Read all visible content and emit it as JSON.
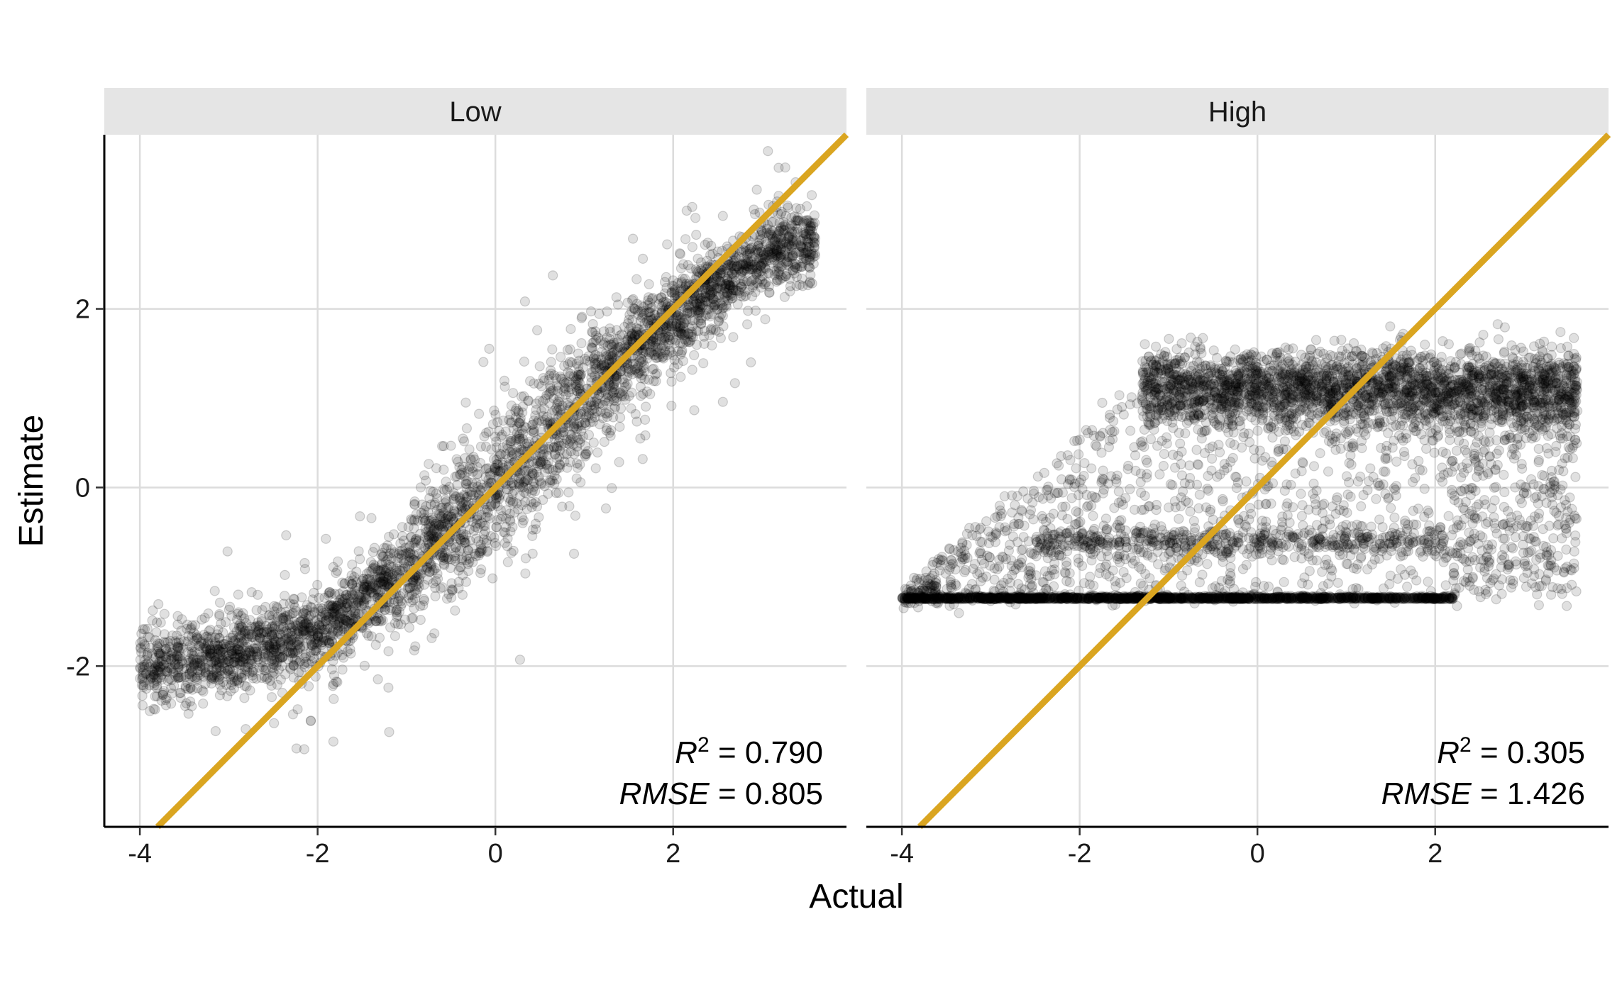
{
  "chart_data": {
    "type": "scatter",
    "xlabel": "Actual",
    "ylabel": "Estimate",
    "xlim": [
      -4.4,
      3.95
    ],
    "ylim": [
      -3.8,
      3.95
    ],
    "x_ticks": [
      -4,
      -2,
      0,
      2
    ],
    "y_ticks": [
      -2,
      0,
      2
    ],
    "x_tick_labels": [
      "-4",
      "-2",
      "0",
      "2"
    ],
    "y_tick_labels": [
      "-2",
      "0",
      "2"
    ],
    "grid": true,
    "legend": "none",
    "point_color": "#000000",
    "point_alpha": 0.12,
    "reference_line": {
      "slope": 1,
      "intercept": 0,
      "color": "#DAA520"
    },
    "panels": [
      {
        "name": "Low",
        "annotation": {
          "r2_label": "R",
          "r2_sup": "2",
          "r2_value": " = 0.790",
          "rmse_label": "RMSE",
          "rmse_value": " = 0.805"
        },
        "points_described": "dense cloud along the identity line, flattening near -2 for Actual < -2 and near 2.8 for Actual > 3",
        "trend": [
          {
            "x": -4.0,
            "y": -2.0
          },
          {
            "x": -3.0,
            "y": -1.9
          },
          {
            "x": -2.0,
            "y": -1.6
          },
          {
            "x": -1.0,
            "y": -0.9
          },
          {
            "x": 0.0,
            "y": 0.0
          },
          {
            "x": 1.0,
            "y": 1.0
          },
          {
            "x": 2.0,
            "y": 1.9
          },
          {
            "x": 3.0,
            "y": 2.6
          },
          {
            "x": 3.6,
            "y": 2.8
          }
        ]
      },
      {
        "name": "High",
        "annotation": {
          "r2_label": "R",
          "r2_sup": "2",
          "r2_value": " = 0.305",
          "rmse_label": "RMSE",
          "rmse_value": " = 1.426"
        },
        "points_described": "estimates clustered in horizontal bands near -1.25, -0.6, 0 and 1.1; floor at -1.25 for Actual < 1.3",
        "bands": [
          {
            "y": -1.25,
            "x_range": [
              -4.0,
              2.2
            ]
          },
          {
            "y": -0.6,
            "x_range": [
              -2.5,
              2.1
            ]
          },
          {
            "y": 1.1,
            "x_range": [
              -1.3,
              3.6
            ]
          }
        ]
      }
    ]
  }
}
